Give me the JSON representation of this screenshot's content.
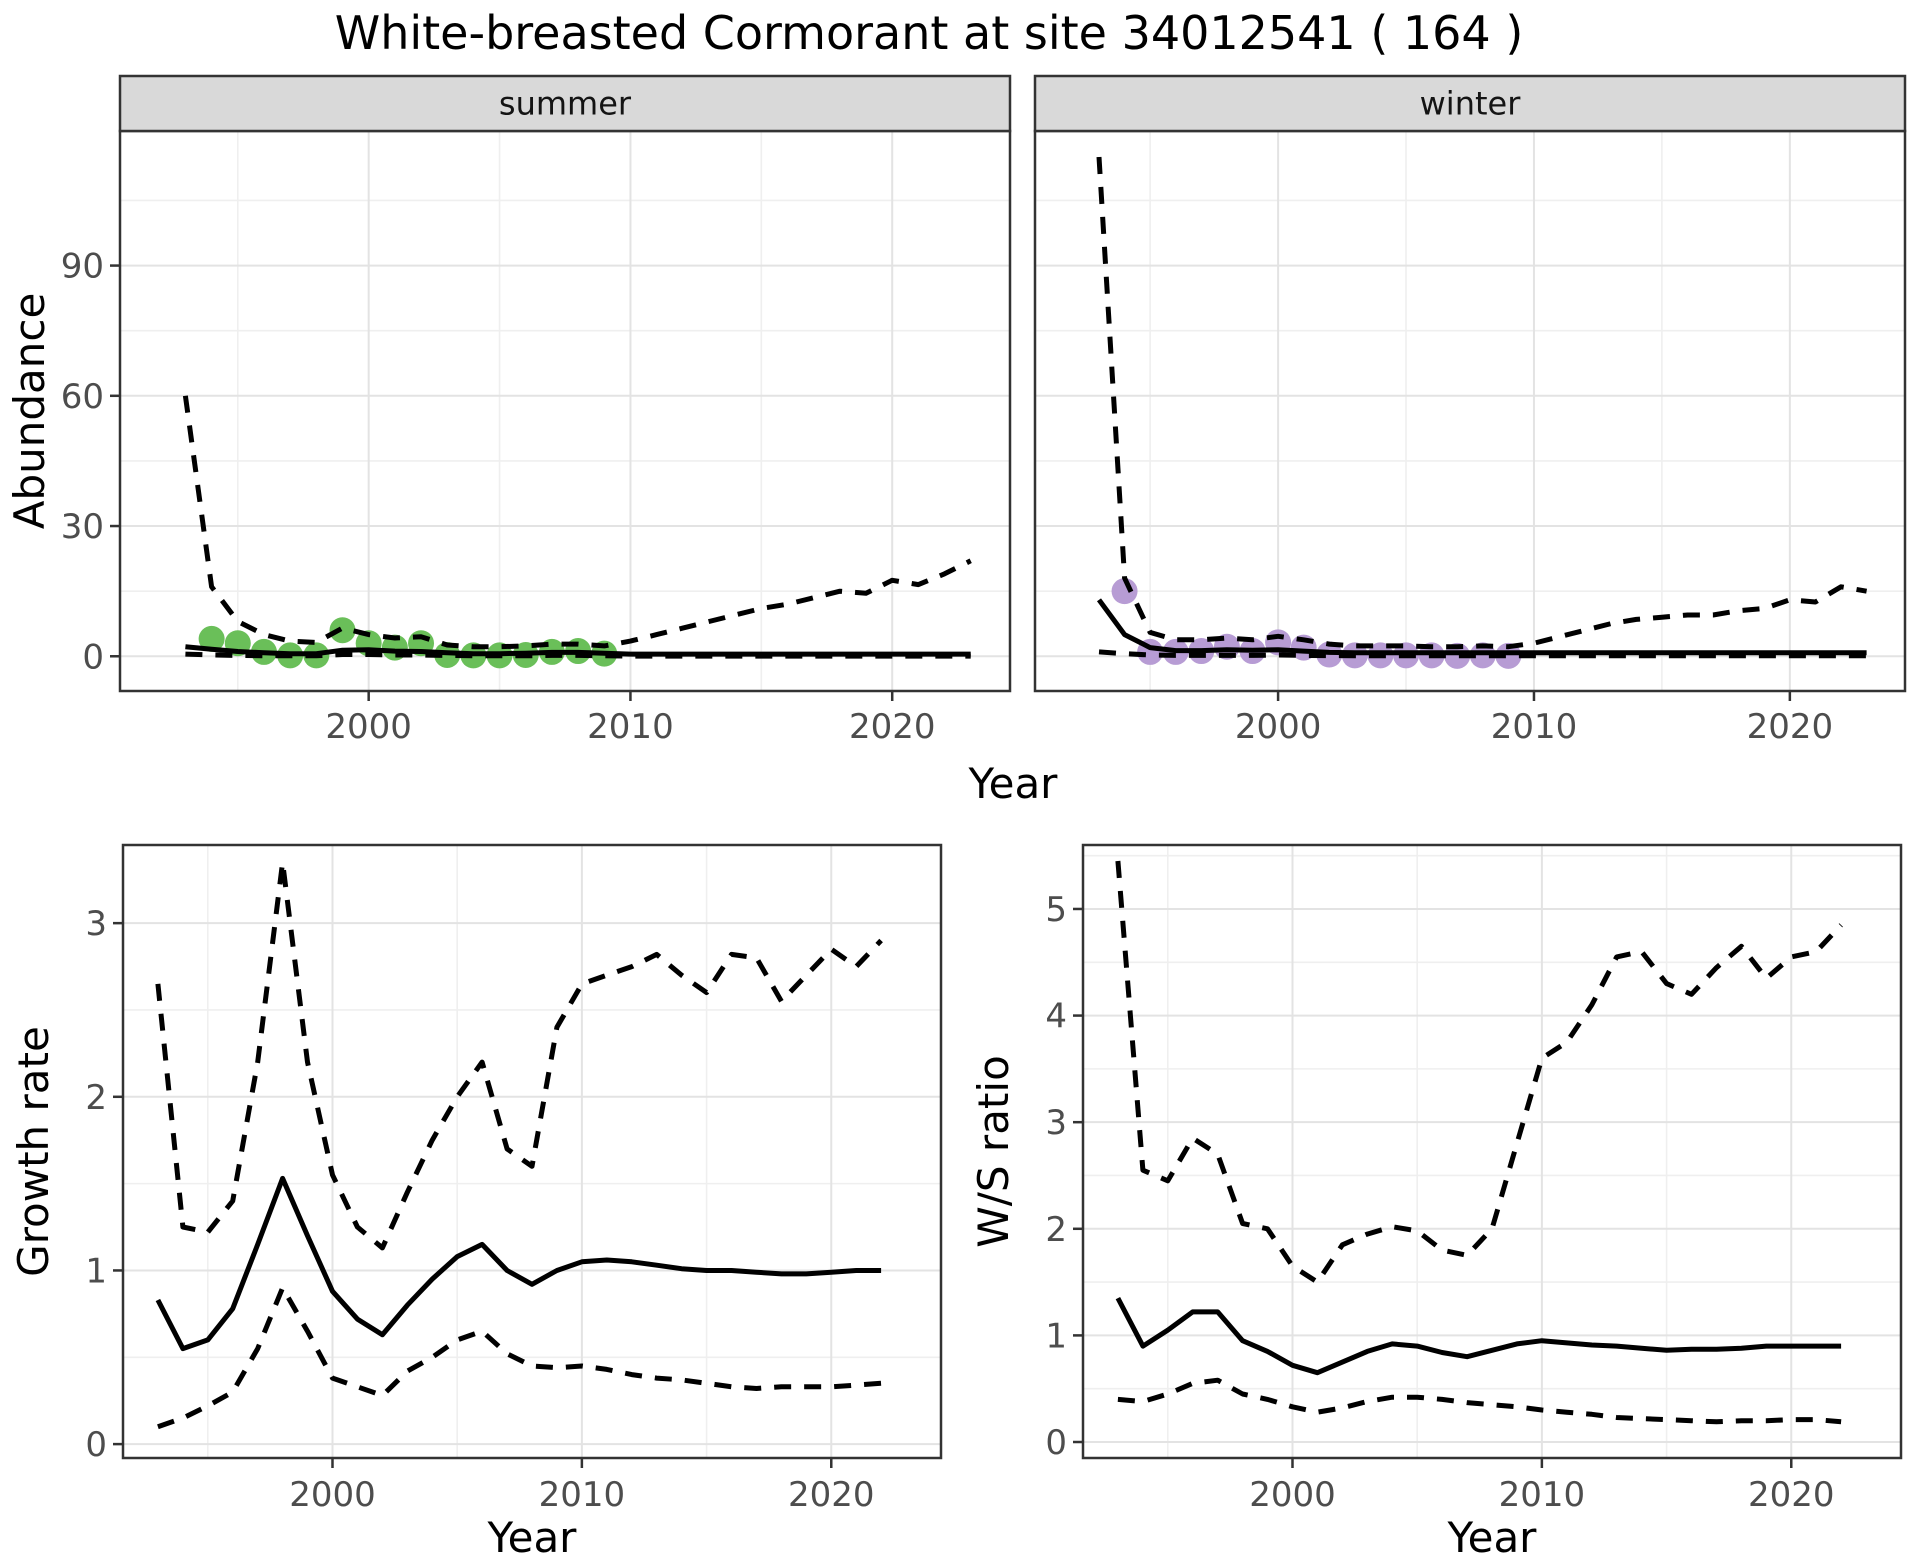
{
  "title": "White-breasted Cormorant at site 34012541 ( 164 )",
  "chart_data": [
    {
      "type": "line",
      "id": "abundance-summer",
      "facet_label": "summer",
      "ylabel": "Abundance",
      "xlabel": "Year",
      "xlim": [
        1990.5,
        2024.5
      ],
      "ylim": [
        -8,
        121
      ],
      "xticks": {
        "values": [
          2000,
          2010,
          2020
        ],
        "labels": [
          "2000",
          "2010",
          "2020"
        ]
      },
      "yticks": {
        "values": [
          0,
          30,
          60,
          90
        ],
        "labels": [
          "0",
          "30",
          "60",
          "90"
        ]
      },
      "xminor": [
        1995,
        2005,
        2015
      ],
      "yminor": [
        15,
        45,
        75,
        105
      ],
      "grid": true,
      "legend": "none",
      "point_color": "#6abf59",
      "line_color": "#000000",
      "points": {
        "x": [
          1994,
          1995,
          1996,
          1997,
          1998,
          1999,
          2000,
          2001,
          2002,
          2003,
          2004,
          2005,
          2006,
          2007,
          2008,
          2009
        ],
        "y": [
          4,
          3,
          1,
          0.2,
          0.2,
          6,
          3,
          2,
          3,
          0.3,
          0.2,
          0.2,
          0.3,
          1,
          1.2,
          0.6
        ]
      },
      "series": [
        {
          "name": "estimate",
          "style": "solid",
          "x": [
            1993,
            1994,
            1995,
            1996,
            1997,
            1998,
            1999,
            2000,
            2001,
            2002,
            2003,
            2004,
            2005,
            2006,
            2007,
            2008,
            2009,
            2010,
            2011,
            2012,
            2013,
            2014,
            2015,
            2016,
            2017,
            2018,
            2019,
            2020,
            2021,
            2022,
            2023
          ],
          "y": [
            2.2,
            1.6,
            1.1,
            0.8,
            0.6,
            0.6,
            1.4,
            1.5,
            1.2,
            1.1,
            0.8,
            0.6,
            0.6,
            0.7,
            0.9,
            0.9,
            0.7,
            0.5,
            0.5,
            0.5,
            0.5,
            0.5,
            0.5,
            0.5,
            0.5,
            0.5,
            0.5,
            0.5,
            0.5,
            0.5,
            0.5
          ]
        },
        {
          "name": "upper 95% CI",
          "style": "dashed",
          "x": [
            1993,
            1994,
            1995,
            1996,
            1997,
            1998,
            1999,
            2000,
            2001,
            2002,
            2003,
            2004,
            2005,
            2006,
            2007,
            2008,
            2009,
            2010,
            2011,
            2012,
            2013,
            2014,
            2015,
            2016,
            2017,
            2018,
            2019,
            2020,
            2021,
            2022,
            2023
          ],
          "y": [
            60,
            16,
            8,
            5,
            3.5,
            3.2,
            6.5,
            5,
            4.2,
            4.5,
            2.6,
            2.2,
            2.2,
            2.4,
            2.8,
            2.8,
            2.4,
            3.5,
            5,
            6.5,
            8,
            9.5,
            11,
            12,
            13.5,
            15,
            14.5,
            17.5,
            16.5,
            19,
            22
          ]
        },
        {
          "name": "lower 95% CI",
          "style": "dashed",
          "x": [
            1993,
            1994,
            1995,
            1996,
            1997,
            1998,
            1999,
            2000,
            2001,
            2002,
            2003,
            2004,
            2005,
            2006,
            2007,
            2008,
            2009,
            2010,
            2011,
            2012,
            2013,
            2014,
            2015,
            2016,
            2017,
            2018,
            2019,
            2020,
            2021,
            2022,
            2023
          ],
          "y": [
            0.5,
            0.3,
            0.2,
            0.1,
            0.1,
            0.1,
            0.4,
            0.4,
            0.3,
            0.3,
            0.2,
            0.1,
            0.1,
            0.1,
            0.2,
            0.2,
            0.1,
            0.05,
            0.05,
            0.05,
            0.05,
            0.05,
            0.05,
            0.05,
            0.05,
            0.05,
            0.05,
            0.05,
            0.05,
            0.05,
            0.05
          ]
        }
      ]
    },
    {
      "type": "line",
      "id": "abundance-winter",
      "facet_label": "winter",
      "ylabel": "Abundance",
      "xlabel": "Year",
      "xlim": [
        1990.5,
        2024.5
      ],
      "ylim": [
        -8,
        121
      ],
      "xticks": {
        "values": [
          2000,
          2010,
          2020
        ],
        "labels": [
          "2000",
          "2010",
          "2020"
        ]
      },
      "yticks": {
        "values": [
          0,
          30,
          60,
          90
        ],
        "labels": [
          "0",
          "30",
          "60",
          "90"
        ]
      },
      "xminor": [
        1995,
        2005,
        2015
      ],
      "yminor": [
        15,
        45,
        75,
        105
      ],
      "grid": true,
      "legend": "none",
      "point_color": "#b79cd4",
      "line_color": "#000000",
      "points": {
        "x": [
          1994,
          1995,
          1996,
          1997,
          1998,
          1999,
          2000,
          2001,
          2002,
          2003,
          2004,
          2005,
          2006,
          2007,
          2008,
          2009
        ],
        "y": [
          15,
          1,
          1,
          1.2,
          2.2,
          1.2,
          3.2,
          2,
          0.4,
          0.2,
          0.2,
          0.2,
          0.2,
          0.1,
          0.2,
          0.1
        ]
      },
      "series": [
        {
          "name": "estimate",
          "style": "solid",
          "x": [
            1993,
            1994,
            1995,
            1996,
            1997,
            1998,
            1999,
            2000,
            2001,
            2002,
            2003,
            2004,
            2005,
            2006,
            2007,
            2008,
            2009,
            2010,
            2011,
            2012,
            2013,
            2014,
            2015,
            2016,
            2017,
            2018,
            2019,
            2020,
            2021,
            2022,
            2023
          ],
          "y": [
            13,
            5,
            2,
            1.3,
            1.3,
            1.5,
            1.4,
            1.5,
            1.2,
            0.9,
            0.8,
            0.8,
            0.8,
            0.8,
            0.8,
            0.8,
            0.8,
            0.8,
            0.8,
            0.8,
            0.8,
            0.8,
            0.8,
            0.8,
            0.8,
            0.8,
            0.8,
            0.8,
            0.8,
            0.8,
            0.8
          ]
        },
        {
          "name": "upper 95% CI",
          "style": "dashed",
          "x": [
            1993,
            1994,
            1995,
            1996,
            1997,
            1998,
            1999,
            2000,
            2001,
            2002,
            2003,
            2004,
            2005,
            2006,
            2007,
            2008,
            2009,
            2010,
            2011,
            2012,
            2013,
            2014,
            2015,
            2016,
            2017,
            2018,
            2019,
            2020,
            2021,
            2022,
            2023
          ],
          "y": [
            115,
            18,
            5.5,
            3.8,
            3.8,
            4.2,
            3.8,
            4.6,
            3.8,
            2.8,
            2.4,
            2.4,
            2.4,
            2.2,
            2.2,
            2.4,
            2.2,
            3,
            4.5,
            6,
            7.5,
            8.5,
            9,
            9.5,
            9.5,
            10.5,
            11,
            13,
            12.5,
            16,
            15
          ]
        },
        {
          "name": "lower 95% CI",
          "style": "dashed",
          "x": [
            1993,
            1994,
            1995,
            1996,
            1997,
            1998,
            1999,
            2000,
            2001,
            2002,
            2003,
            2004,
            2005,
            2006,
            2007,
            2008,
            2009,
            2010,
            2011,
            2012,
            2013,
            2014,
            2015,
            2016,
            2017,
            2018,
            2019,
            2020,
            2021,
            2022,
            2023
          ],
          "y": [
            1,
            0.6,
            0.3,
            0.2,
            0.2,
            0.2,
            0.2,
            0.3,
            0.2,
            0.15,
            0.1,
            0.1,
            0.1,
            0.1,
            0.1,
            0.1,
            0.1,
            0.1,
            0.1,
            0.1,
            0.1,
            0.1,
            0.1,
            0.1,
            0.1,
            0.1,
            0.1,
            0.1,
            0.1,
            0.1,
            0.1
          ]
        }
      ]
    },
    {
      "type": "line",
      "id": "growth-rate",
      "ylabel": "Growth rate",
      "xlabel": "Year",
      "xlim": [
        1991.6,
        2024.4
      ],
      "ylim": [
        -0.08,
        3.45
      ],
      "xticks": {
        "values": [
          2000,
          2010,
          2020
        ],
        "labels": [
          "2000",
          "2010",
          "2020"
        ]
      },
      "yticks": {
        "values": [
          0,
          1,
          2,
          3
        ],
        "labels": [
          "0",
          "1",
          "2",
          "3"
        ]
      },
      "xminor": [
        1995,
        2005,
        2015
      ],
      "yminor": [
        0.5,
        1.5,
        2.5
      ],
      "grid": true,
      "legend": "none",
      "line_color": "#000000",
      "series": [
        {
          "name": "estimate",
          "style": "solid",
          "x": [
            1993,
            1994,
            1995,
            1996,
            1997,
            1998,
            1999,
            2000,
            2001,
            2002,
            2003,
            2004,
            2005,
            2006,
            2007,
            2008,
            2009,
            2010,
            2011,
            2012,
            2013,
            2014,
            2015,
            2016,
            2017,
            2018,
            2019,
            2020,
            2021,
            2022
          ],
          "y": [
            0.83,
            0.55,
            0.6,
            0.78,
            1.15,
            1.53,
            1.2,
            0.88,
            0.72,
            0.63,
            0.8,
            0.95,
            1.08,
            1.15,
            1.0,
            0.92,
            1.0,
            1.05,
            1.06,
            1.05,
            1.03,
            1.01,
            1.0,
            1.0,
            0.99,
            0.98,
            0.98,
            0.99,
            1.0,
            1.0
          ]
        },
        {
          "name": "upper 95% CI",
          "style": "dashed",
          "x": [
            1993,
            1994,
            1995,
            1996,
            1997,
            1998,
            1999,
            2000,
            2001,
            2002,
            2003,
            2004,
            2005,
            2006,
            2007,
            2008,
            2009,
            2010,
            2011,
            2012,
            2013,
            2014,
            2015,
            2016,
            2017,
            2018,
            2019,
            2020,
            2021,
            2022
          ],
          "y": [
            2.65,
            1.25,
            1.22,
            1.4,
            2.2,
            3.35,
            2.2,
            1.55,
            1.25,
            1.13,
            1.45,
            1.75,
            2.0,
            2.2,
            1.7,
            1.6,
            2.4,
            2.65,
            2.7,
            2.75,
            2.82,
            2.7,
            2.6,
            2.82,
            2.8,
            2.55,
            2.7,
            2.85,
            2.75,
            2.9
          ]
        },
        {
          "name": "lower 95% CI",
          "style": "dashed",
          "x": [
            1993,
            1994,
            1995,
            1996,
            1997,
            1998,
            1999,
            2000,
            2001,
            2002,
            2003,
            2004,
            2005,
            2006,
            2007,
            2008,
            2009,
            2010,
            2011,
            2012,
            2013,
            2014,
            2015,
            2016,
            2017,
            2018,
            2019,
            2020,
            2021,
            2022
          ],
          "y": [
            0.1,
            0.15,
            0.22,
            0.3,
            0.55,
            0.9,
            0.65,
            0.38,
            0.33,
            0.28,
            0.42,
            0.5,
            0.6,
            0.65,
            0.52,
            0.45,
            0.44,
            0.45,
            0.43,
            0.4,
            0.38,
            0.37,
            0.35,
            0.33,
            0.32,
            0.33,
            0.33,
            0.33,
            0.34,
            0.35
          ]
        }
      ]
    },
    {
      "type": "line",
      "id": "ws-ratio",
      "ylabel": "W/S ratio",
      "xlabel": "Year",
      "xlim": [
        1991.6,
        2024.4
      ],
      "ylim": [
        -0.15,
        5.6
      ],
      "xticks": {
        "values": [
          2000,
          2010,
          2020
        ],
        "labels": [
          "2000",
          "2010",
          "2020"
        ]
      },
      "yticks": {
        "values": [
          0,
          1,
          2,
          3,
          4,
          5
        ],
        "labels": [
          "0",
          "1",
          "2",
          "3",
          "4",
          "5"
        ]
      },
      "xminor": [
        1995,
        2005,
        2015
      ],
      "yminor": [
        0.5,
        1.5,
        2.5,
        3.5,
        4.5,
        5.5
      ],
      "grid": true,
      "legend": "none",
      "line_color": "#000000",
      "series": [
        {
          "name": "estimate",
          "style": "solid",
          "x": [
            1993,
            1994,
            1995,
            1996,
            1997,
            1998,
            1999,
            2000,
            2001,
            2002,
            2003,
            2004,
            2005,
            2006,
            2007,
            2008,
            2009,
            2010,
            2011,
            2012,
            2013,
            2014,
            2015,
            2016,
            2017,
            2018,
            2019,
            2020,
            2021,
            2022
          ],
          "y": [
            1.35,
            0.9,
            1.05,
            1.22,
            1.22,
            0.95,
            0.85,
            0.72,
            0.65,
            0.75,
            0.85,
            0.92,
            0.9,
            0.84,
            0.8,
            0.86,
            0.92,
            0.95,
            0.93,
            0.91,
            0.9,
            0.88,
            0.86,
            0.87,
            0.87,
            0.88,
            0.9,
            0.9,
            0.9,
            0.9
          ]
        },
        {
          "name": "upper 95% CI",
          "style": "dashed",
          "x": [
            1993,
            1994,
            1995,
            1996,
            1997,
            1998,
            1999,
            2000,
            2001,
            2002,
            2003,
            2004,
            2005,
            2006,
            2007,
            2008,
            2009,
            2010,
            2011,
            2012,
            2013,
            2014,
            2015,
            2016,
            2017,
            2018,
            2019,
            2020,
            2021,
            2022
          ],
          "y": [
            5.45,
            2.55,
            2.45,
            2.85,
            2.7,
            2.05,
            2.0,
            1.65,
            1.5,
            1.85,
            1.95,
            2.02,
            1.98,
            1.8,
            1.75,
            2.0,
            2.8,
            3.6,
            3.75,
            4.1,
            4.55,
            4.6,
            4.3,
            4.2,
            4.45,
            4.65,
            4.35,
            4.55,
            4.6,
            4.85
          ]
        },
        {
          "name": "lower 95% CI",
          "style": "dashed",
          "x": [
            1993,
            1994,
            1995,
            1996,
            1997,
            1998,
            1999,
            2000,
            2001,
            2002,
            2003,
            2004,
            2005,
            2006,
            2007,
            2008,
            2009,
            2010,
            2011,
            2012,
            2013,
            2014,
            2015,
            2016,
            2017,
            2018,
            2019,
            2020,
            2021,
            2022
          ],
          "y": [
            0.4,
            0.38,
            0.45,
            0.55,
            0.58,
            0.45,
            0.4,
            0.33,
            0.28,
            0.32,
            0.38,
            0.42,
            0.42,
            0.4,
            0.37,
            0.35,
            0.33,
            0.3,
            0.28,
            0.26,
            0.23,
            0.22,
            0.21,
            0.2,
            0.19,
            0.2,
            0.2,
            0.21,
            0.21,
            0.19
          ]
        }
      ]
    }
  ],
  "colors": {
    "summer_point": "#6abf59",
    "winter_point": "#b79cd4",
    "line": "#000000",
    "strip_background": "#d9d9d9",
    "panel_border": "#333333",
    "grid_major": "#e3e3e3",
    "grid_minor": "#efefef",
    "tick_label": "#4d4d4d"
  }
}
